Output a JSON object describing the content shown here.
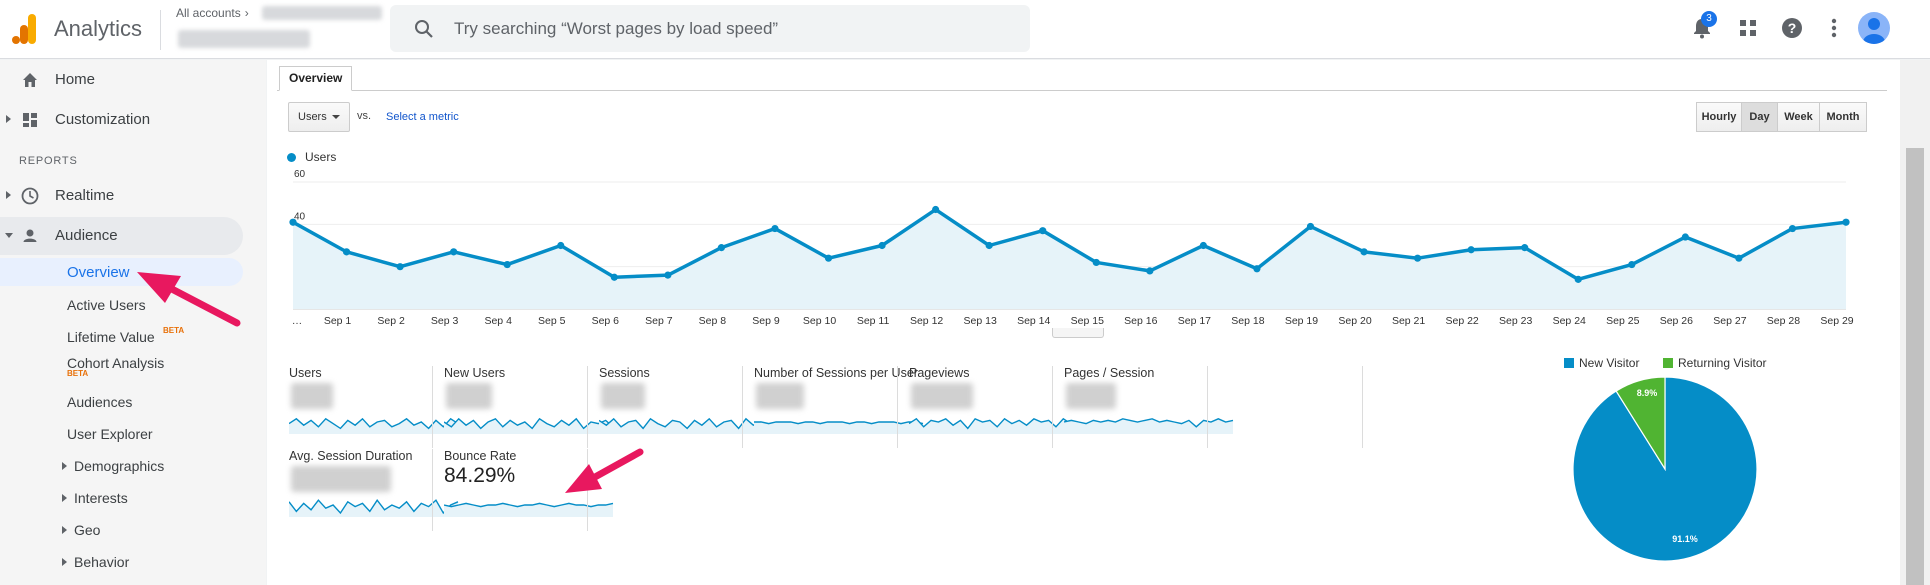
{
  "header": {
    "app_title": "Analytics",
    "account_crumb": "All accounts",
    "search_placeholder": "Try searching “Worst pages by load speed”",
    "notification_count": "3",
    "icons": [
      "analytics-logo-icon",
      "search-icon",
      "bell-icon",
      "apps-grid-icon",
      "help-icon",
      "more-vert-icon",
      "account-avatar-icon"
    ]
  },
  "sidebar": {
    "home": "Home",
    "customization": "Customization",
    "reports_header": "REPORTS",
    "realtime": "Realtime",
    "audience": "Audience",
    "audience_items": [
      {
        "label": "Overview",
        "active": true
      },
      {
        "label": "Active Users"
      },
      {
        "label": "Lifetime Value",
        "badge": "BETA"
      },
      {
        "label": "Cohort Analysis",
        "badge": "BETA"
      },
      {
        "label": "Audiences"
      },
      {
        "label": "User Explorer"
      },
      {
        "label": "Demographics",
        "expandable": true
      },
      {
        "label": "Interests",
        "expandable": true
      },
      {
        "label": "Geo",
        "expandable": true
      },
      {
        "label": "Behavior",
        "expandable": true
      }
    ]
  },
  "main": {
    "tab": "Overview",
    "metric": "Users",
    "vs": "vs.",
    "select_metric": "Select a metric",
    "granularity": [
      "Hourly",
      "Day",
      "Week",
      "Month"
    ],
    "granularity_selected": "Day"
  },
  "chart_data": [
    {
      "type": "line",
      "series": [
        {
          "name": "Users",
          "values": [
            41,
            27,
            20,
            27,
            21,
            30,
            15,
            16,
            29,
            38,
            24,
            30,
            47,
            30,
            37,
            22,
            18,
            30,
            19,
            39,
            27,
            24,
            28,
            29,
            14,
            21,
            34,
            24,
            38,
            41
          ]
        }
      ],
      "x": [
        "…",
        "Sep 1",
        "Sep 2",
        "Sep 3",
        "Sep 4",
        "Sep 5",
        "Sep 6",
        "Sep 7",
        "Sep 8",
        "Sep 9",
        "Sep 10",
        "Sep 11",
        "Sep 12",
        "Sep 13",
        "Sep 14",
        "Sep 15",
        "Sep 16",
        "Sep 17",
        "Sep 18",
        "Sep 19",
        "Sep 20",
        "Sep 21",
        "Sep 22",
        "Sep 23",
        "Sep 24",
        "Sep 25",
        "Sep 26",
        "Sep 27",
        "Sep 28",
        "Sep 29"
      ],
      "yticks": [
        20,
        40,
        60
      ],
      "ylim": [
        0,
        60
      ],
      "grid": true,
      "area_fill": true,
      "color": "#058dc7",
      "title": "",
      "xlabel": "",
      "ylabel": ""
    },
    {
      "type": "pie",
      "categories": [
        "New Visitor",
        "Returning Visitor"
      ],
      "values": [
        91.1,
        8.9
      ],
      "labels": [
        "91.1%",
        "8.9%"
      ],
      "colors": [
        "#058dc7",
        "#50b432"
      ],
      "legend": "top"
    }
  ],
  "scorecards": [
    {
      "label": "Users"
    },
    {
      "label": "New Users"
    },
    {
      "label": "Sessions"
    },
    {
      "label": "Number of Sessions per User"
    },
    {
      "label": "Pageviews"
    },
    {
      "label": "Pages / Session"
    },
    {
      "label": "Avg. Session Duration"
    },
    {
      "label": "Bounce Rate",
      "value": "84.29%"
    }
  ],
  "colors": {
    "accent": "#1a73e8",
    "series": "#058dc7",
    "annotation_arrow": "#e8185f"
  }
}
